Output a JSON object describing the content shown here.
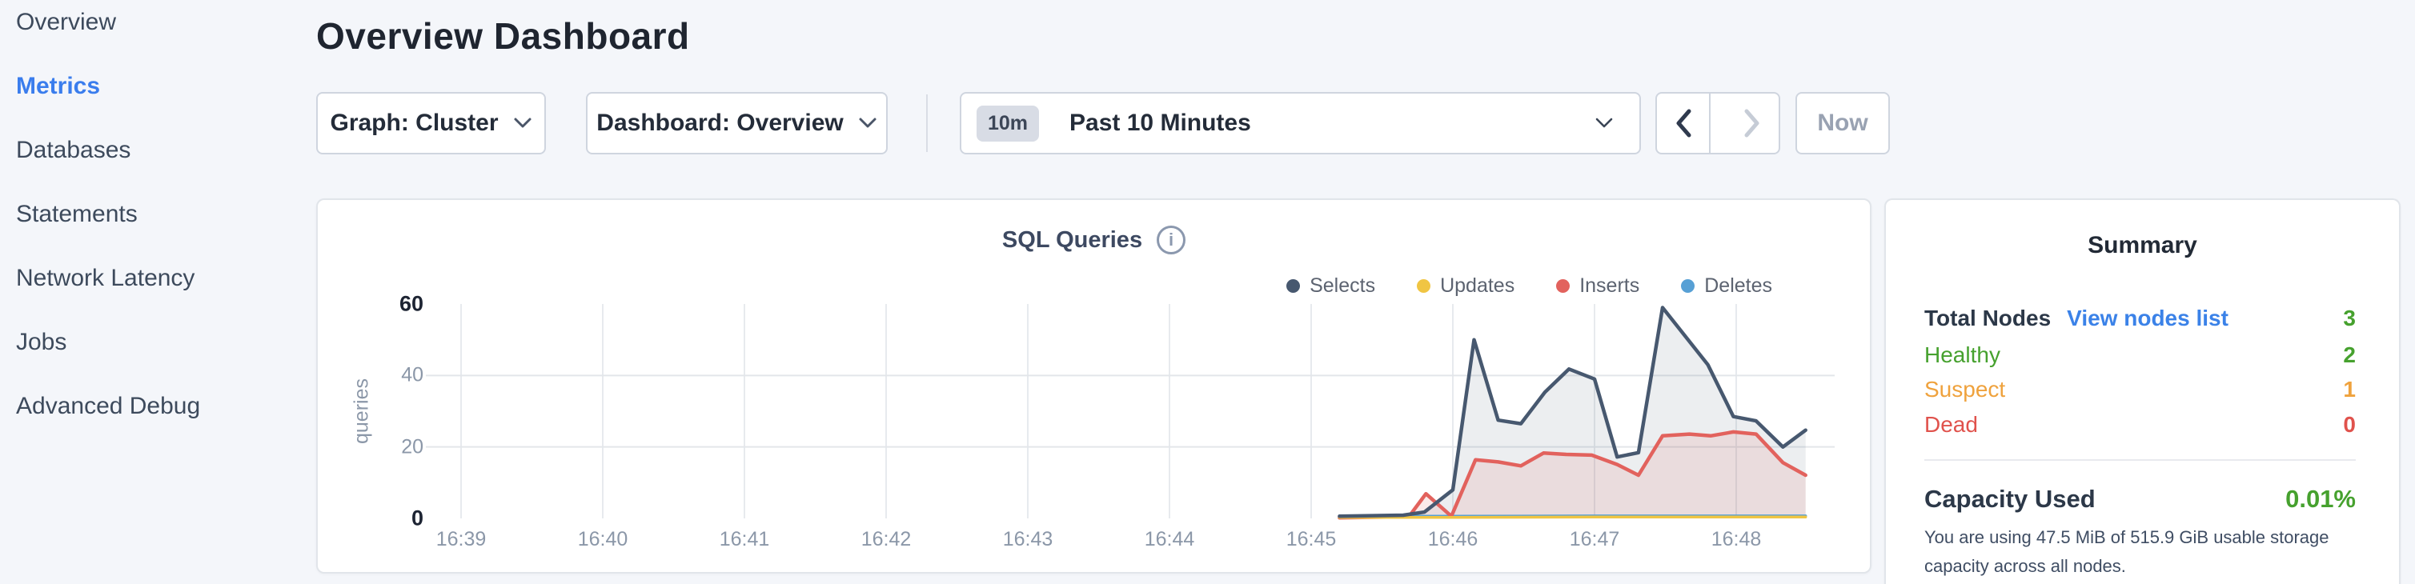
{
  "colors": {
    "page_bg": "#f4f6fa",
    "accent_blue": "#3a7ded",
    "healthy_green": "#46a12e",
    "suspect_orange": "#efa23d",
    "dead_red": "#e0524c",
    "selects": "#47586f",
    "updates": "#f0c543",
    "inserts": "#e2625d",
    "deletes": "#57a0d5"
  },
  "sidebar": {
    "items": [
      {
        "label": "Overview",
        "active": false
      },
      {
        "label": "Metrics",
        "active": true
      },
      {
        "label": "Databases",
        "active": false
      },
      {
        "label": "Statements",
        "active": false
      },
      {
        "label": "Network Latency",
        "active": false
      },
      {
        "label": "Jobs",
        "active": false
      },
      {
        "label": "Advanced Debug",
        "active": false
      }
    ]
  },
  "header": {
    "title": "Overview Dashboard"
  },
  "toolbar": {
    "graph_dropdown_label": "Graph: Cluster",
    "dashboard_dropdown_label": "Dashboard: Overview",
    "time_selector": {
      "badge": "10m",
      "label": "Past 10 Minutes"
    },
    "now_label": "Now"
  },
  "chart": {
    "title": "SQL Queries",
    "info_icon_glyph": "i",
    "ylabel": "queries"
  },
  "chart_data": {
    "type": "area",
    "title": "SQL Queries",
    "xlabel": "",
    "ylabel": "queries",
    "x_note": "x values are fractional minutes after 16:39",
    "x_axis": {
      "tick_labels": [
        "16:39",
        "16:40",
        "16:41",
        "16:42",
        "16:43",
        "16:44",
        "16:45",
        "16:46",
        "16:47",
        "16:48"
      ]
    },
    "y_axis": {
      "ticks": [
        0,
        20,
        40,
        60
      ],
      "range": [
        0,
        60
      ],
      "dark_ticks": [
        0,
        60
      ]
    },
    "grid": {
      "vertical": true,
      "horizontal_at": [
        20,
        40
      ]
    },
    "legend_position": "top-right",
    "series": [
      {
        "name": "Selects",
        "color": "#47586f",
        "fill": "rgba(71,88,111,0.10)",
        "stroke_width": 4.5,
        "points": [
          [
            6.2,
            0.6
          ],
          [
            6.65,
            0.9
          ],
          [
            6.8,
            1.8
          ],
          [
            7.0,
            8
          ],
          [
            7.15,
            50
          ],
          [
            7.32,
            27.5
          ],
          [
            7.48,
            26.5
          ],
          [
            7.65,
            35.3
          ],
          [
            7.82,
            41.8
          ],
          [
            8.0,
            39
          ],
          [
            8.16,
            17.2
          ],
          [
            8.31,
            18.4
          ],
          [
            8.48,
            59
          ],
          [
            8.8,
            43
          ],
          [
            8.98,
            28.5
          ],
          [
            9.14,
            27.3
          ],
          [
            9.33,
            20
          ],
          [
            9.49,
            24.7
          ]
        ]
      },
      {
        "name": "Updates",
        "color": "#f0c543",
        "fill": "none",
        "stroke_width": 3.5,
        "points": [
          [
            6.2,
            0.3
          ],
          [
            7.0,
            0.3
          ],
          [
            8.0,
            0.4
          ],
          [
            9.49,
            0.4
          ]
        ]
      },
      {
        "name": "Inserts",
        "color": "#e2625d",
        "fill": "rgba(226,98,93,0.13)",
        "stroke_width": 4.5,
        "points": [
          [
            6.2,
            0.15
          ],
          [
            6.69,
            0.5
          ],
          [
            6.81,
            6.9
          ],
          [
            6.99,
            0.6
          ],
          [
            7.16,
            16.4
          ],
          [
            7.32,
            15.8
          ],
          [
            7.48,
            14.7
          ],
          [
            7.64,
            18.3
          ],
          [
            7.8,
            17.9
          ],
          [
            7.98,
            17.7
          ],
          [
            8.16,
            15.1
          ],
          [
            8.31,
            12.1
          ],
          [
            8.48,
            23.1
          ],
          [
            8.67,
            23.6
          ],
          [
            8.82,
            23.1
          ],
          [
            8.98,
            24.2
          ],
          [
            9.14,
            23.6
          ],
          [
            9.33,
            15.6
          ],
          [
            9.49,
            12.1
          ]
        ]
      },
      {
        "name": "Deletes",
        "color": "#57a0d5",
        "fill": "none",
        "stroke_width": 3.5,
        "points": [
          [
            6.2,
            0.7
          ],
          [
            7.0,
            0.6
          ],
          [
            8.0,
            0.7
          ],
          [
            9.49,
            0.7
          ]
        ]
      }
    ]
  },
  "summary": {
    "title": "Summary",
    "node_rows": [
      {
        "label": "Total Nodes",
        "label_color": "#2c3848",
        "bold": true,
        "link": "View nodes list",
        "value": "3",
        "value_color": "#46a12e"
      },
      {
        "label": "Healthy",
        "label_color": "#46a12e",
        "bold": false,
        "link": null,
        "value": "2",
        "value_color": "#46a12e"
      },
      {
        "label": "Suspect",
        "label_color": "#efa23d",
        "bold": false,
        "link": null,
        "value": "1",
        "value_color": "#efa23d"
      },
      {
        "label": "Dead",
        "label_color": "#e0524c",
        "bold": false,
        "link": null,
        "value": "0",
        "value_color": "#e0524c"
      }
    ],
    "capacity": {
      "label": "Capacity Used",
      "value": "0.01%",
      "description": "You are using 47.5 MiB of 515.9 GiB usable storage capacity across all nodes."
    }
  }
}
